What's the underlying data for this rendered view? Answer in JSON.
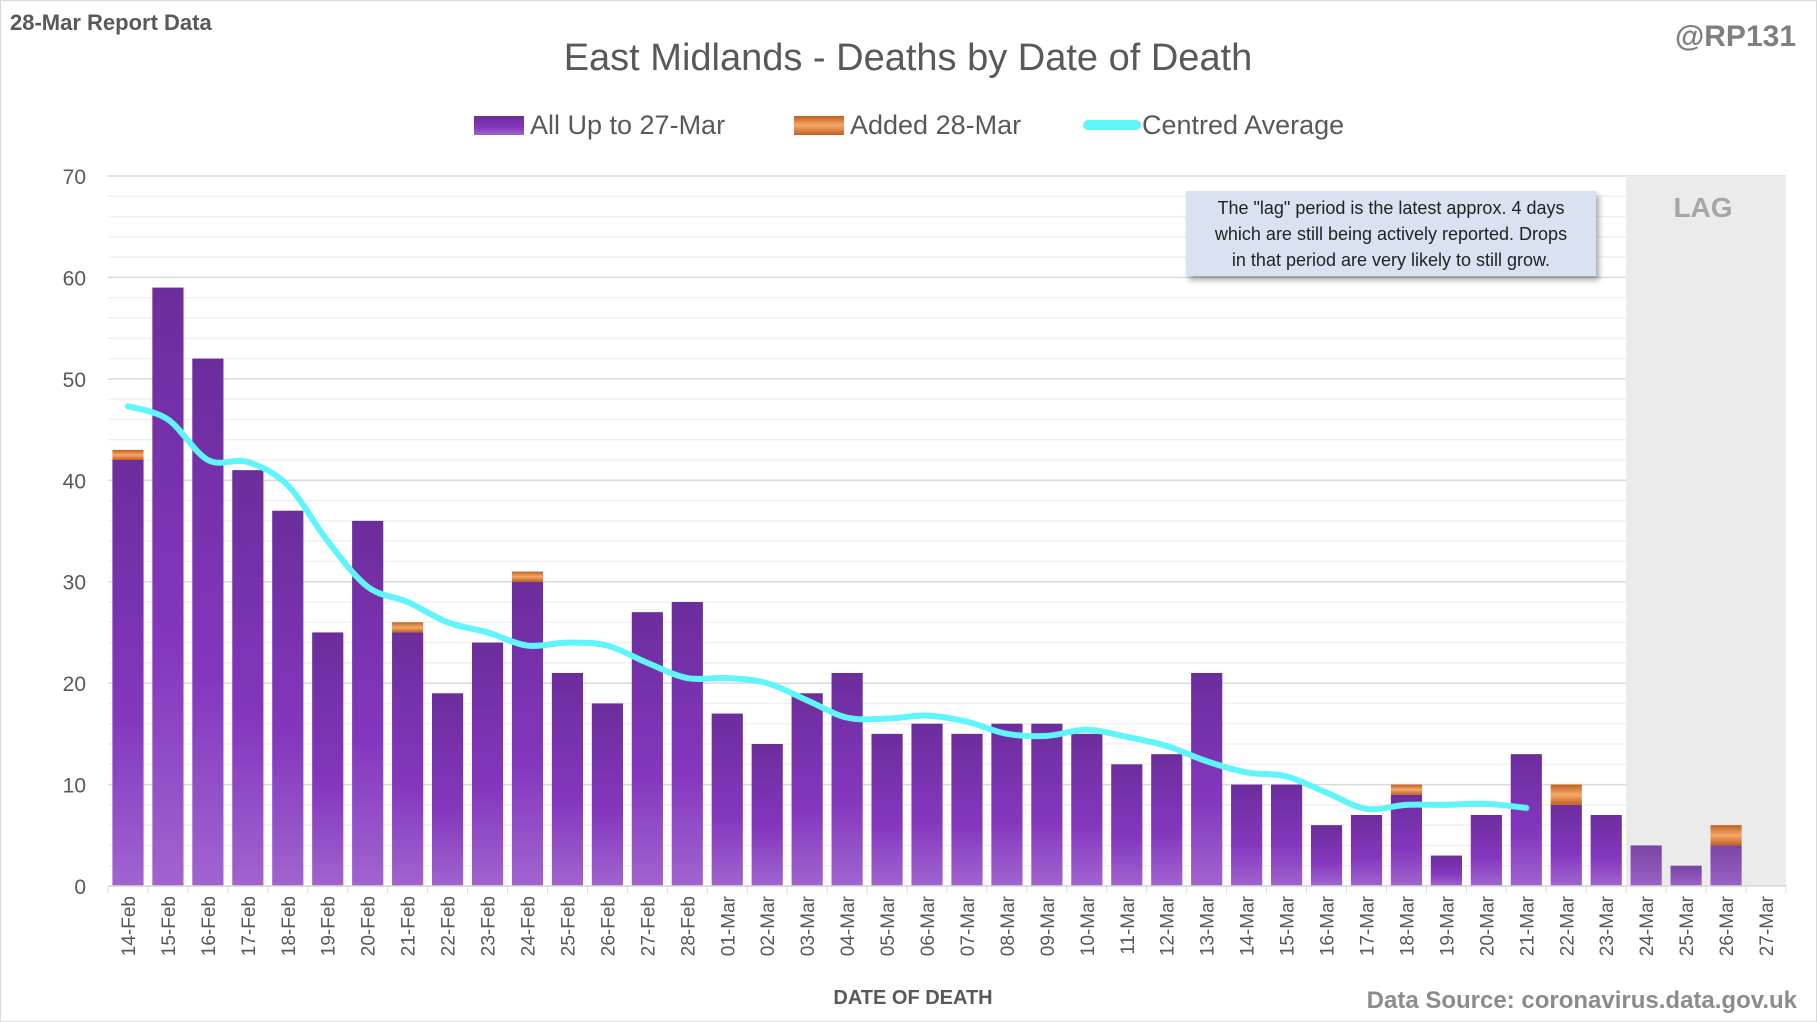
{
  "header": {
    "report_label": "28-Mar Report Data",
    "handle": "@RP131"
  },
  "colors": {
    "all_up_to": "#7b2fae",
    "added": "#e07a30",
    "average": "#5ff5fa",
    "lag_shade": "#ebebeb",
    "note_bg": "#dae1f1"
  },
  "annotation": {
    "note_lines": [
      "The \"lag\" period is the latest approx. 4 days",
      "which are still being actively reported.  Drops",
      "in that period are very likely to still grow."
    ],
    "lag_label": "LAG"
  },
  "footer": {
    "source": "Data Source: coronavirus.data.gov.uk"
  },
  "chart_data": {
    "type": "bar",
    "stacked": true,
    "title": "East Midlands - Deaths by Date of Death",
    "xlabel": "DATE OF DEATH",
    "ylabel": "",
    "ylim": [
      0,
      70
    ],
    "yticks": [
      0,
      10,
      20,
      30,
      40,
      50,
      60,
      70
    ],
    "grid": true,
    "legend_position": "top",
    "lag_period": [
      "24-Mar",
      "27-Mar"
    ],
    "categories": [
      "14-Feb",
      "15-Feb",
      "16-Feb",
      "17-Feb",
      "18-Feb",
      "19-Feb",
      "20-Feb",
      "21-Feb",
      "22-Feb",
      "23-Feb",
      "24-Feb",
      "25-Feb",
      "26-Feb",
      "27-Feb",
      "28-Feb",
      "01-Mar",
      "02-Mar",
      "03-Mar",
      "04-Mar",
      "05-Mar",
      "06-Mar",
      "07-Mar",
      "08-Mar",
      "09-Mar",
      "10-Mar",
      "11-Mar",
      "12-Mar",
      "13-Mar",
      "14-Mar",
      "15-Mar",
      "16-Mar",
      "17-Mar",
      "18-Mar",
      "19-Mar",
      "20-Mar",
      "21-Mar",
      "22-Mar",
      "23-Mar",
      "24-Mar",
      "25-Mar",
      "26-Mar",
      "27-Mar"
    ],
    "series": [
      {
        "name": "All Up to 27-Mar",
        "type": "bar",
        "values": [
          42,
          59,
          52,
          41,
          37,
          25,
          36,
          25,
          19,
          24,
          30,
          21,
          18,
          27,
          28,
          17,
          14,
          19,
          21,
          15,
          16,
          15,
          16,
          16,
          15,
          12,
          13,
          21,
          10,
          10,
          6,
          7,
          9,
          3,
          7,
          13,
          8,
          7,
          4,
          2,
          4,
          0
        ]
      },
      {
        "name": "Added 28-Mar",
        "type": "bar",
        "values": [
          1,
          0,
          0,
          0,
          0,
          0,
          0,
          1,
          0,
          0,
          1,
          0,
          0,
          0,
          0,
          0,
          0,
          0,
          0,
          0,
          0,
          0,
          0,
          0,
          0,
          0,
          0,
          0,
          0,
          0,
          0,
          0,
          1,
          0,
          0,
          0,
          2,
          0,
          0,
          0,
          2,
          0
        ]
      },
      {
        "name": "Centred Average",
        "type": "line",
        "values": [
          47.3,
          46,
          42,
          41.8,
          39.5,
          34,
          29.5,
          28,
          26,
          25,
          23.7,
          24,
          23.7,
          22,
          20.5,
          20.5,
          20,
          18.3,
          16.6,
          16.5,
          16.8,
          16.2,
          15,
          14.8,
          15.4,
          14.7,
          13.8,
          12.3,
          11.2,
          10.8,
          9.2,
          7.6,
          8,
          8,
          8.1,
          7.7,
          null,
          null,
          null,
          null,
          null,
          null
        ]
      }
    ]
  }
}
